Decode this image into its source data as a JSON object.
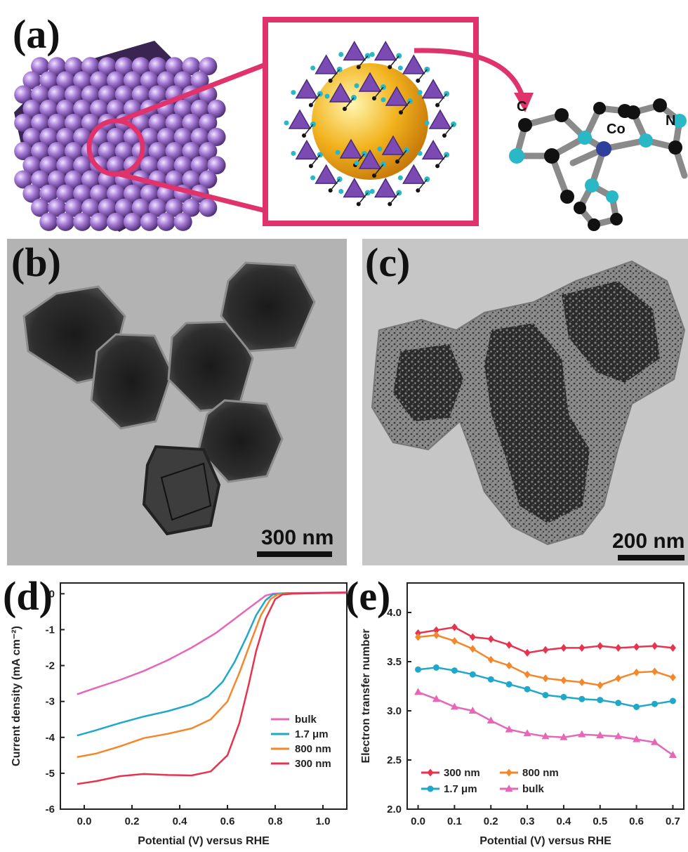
{
  "panels": {
    "a": {
      "label": "(a)",
      "atom_c": "C",
      "atom_co": "Co",
      "atom_n": "N"
    },
    "b": {
      "label": "(b)",
      "scale_bar": "300 nm"
    },
    "c": {
      "label": "(c)",
      "scale_bar": "200 nm"
    },
    "d": {
      "label": "(d)"
    },
    "e": {
      "label": "(e)"
    }
  },
  "colors": {
    "frame": "#e0336b",
    "atom_purple": "#9a6bc4",
    "sphere_yellow": "#f2b31e",
    "cyan_atom": "#2ab7c6",
    "co_atom": "#2f3f9c",
    "bulk": "#e667b8",
    "um17": "#1fa8c9",
    "nm800": "#f5872b",
    "nm300": "#e8334f"
  },
  "chart_data": [
    {
      "id": "d",
      "type": "line",
      "xlabel": "Potential (V) versus RHE",
      "ylabel": "Current density (mA cm⁻²)",
      "xlim": [
        -0.1,
        1.1
      ],
      "ylim": [
        -6,
        0.3
      ],
      "xticks": [
        "0.0",
        "0.2",
        "0.4",
        "0.6",
        "0.8",
        "1.0"
      ],
      "xtick_values": [
        0.0,
        0.2,
        0.4,
        0.6,
        0.8,
        1.0
      ],
      "yticks": [
        "0",
        "-1",
        "-2",
        "-3",
        "-4",
        "-5",
        "-6"
      ],
      "ytick_values": [
        0,
        -1,
        -2,
        -3,
        -4,
        -5,
        -6
      ],
      "legend_position": "lower-right",
      "series": [
        {
          "name": "bulk",
          "color": "#e667b8",
          "points": [
            [
              -0.03,
              -2.8
            ],
            [
              0.05,
              -2.62
            ],
            [
              0.15,
              -2.4
            ],
            [
              0.25,
              -2.15
            ],
            [
              0.35,
              -1.85
            ],
            [
              0.45,
              -1.5
            ],
            [
              0.55,
              -1.1
            ],
            [
              0.62,
              -0.75
            ],
            [
              0.68,
              -0.45
            ],
            [
              0.73,
              -0.2
            ],
            [
              0.76,
              -0.05
            ],
            [
              0.79,
              0.0
            ],
            [
              0.85,
              0.02
            ],
            [
              1.0,
              0.03
            ],
            [
              1.1,
              0.04
            ]
          ]
        },
        {
          "name": "1.7 μm",
          "color": "#1fa8c9",
          "points": [
            [
              -0.03,
              -3.95
            ],
            [
              0.05,
              -3.8
            ],
            [
              0.15,
              -3.6
            ],
            [
              0.25,
              -3.42
            ],
            [
              0.35,
              -3.27
            ],
            [
              0.45,
              -3.08
            ],
            [
              0.52,
              -2.85
            ],
            [
              0.58,
              -2.45
            ],
            [
              0.63,
              -1.9
            ],
            [
              0.68,
              -1.2
            ],
            [
              0.72,
              -0.6
            ],
            [
              0.76,
              -0.18
            ],
            [
              0.79,
              -0.02
            ],
            [
              0.83,
              0.0
            ],
            [
              1.0,
              0.02
            ],
            [
              1.1,
              0.03
            ]
          ]
        },
        {
          "name": "800 nm",
          "color": "#f5872b",
          "points": [
            [
              -0.03,
              -4.55
            ],
            [
              0.05,
              -4.45
            ],
            [
              0.15,
              -4.25
            ],
            [
              0.25,
              -4.02
            ],
            [
              0.35,
              -3.9
            ],
            [
              0.45,
              -3.75
            ],
            [
              0.53,
              -3.5
            ],
            [
              0.6,
              -3.0
            ],
            [
              0.65,
              -2.2
            ],
            [
              0.7,
              -1.3
            ],
            [
              0.74,
              -0.6
            ],
            [
              0.78,
              -0.15
            ],
            [
              0.81,
              -0.02
            ],
            [
              0.85,
              0.0
            ],
            [
              1.0,
              0.02
            ],
            [
              1.1,
              0.03
            ]
          ]
        },
        {
          "name": "300 nm",
          "color": "#e8334f",
          "points": [
            [
              -0.03,
              -5.3
            ],
            [
              0.05,
              -5.22
            ],
            [
              0.15,
              -5.08
            ],
            [
              0.25,
              -5.02
            ],
            [
              0.35,
              -5.05
            ],
            [
              0.45,
              -5.06
            ],
            [
              0.53,
              -4.95
            ],
            [
              0.6,
              -4.5
            ],
            [
              0.65,
              -3.6
            ],
            [
              0.69,
              -2.5
            ],
            [
              0.72,
              -1.6
            ],
            [
              0.76,
              -0.7
            ],
            [
              0.8,
              -0.15
            ],
            [
              0.83,
              -0.02
            ],
            [
              0.87,
              0.0
            ],
            [
              1.0,
              0.02
            ],
            [
              1.1,
              0.03
            ]
          ]
        }
      ]
    },
    {
      "id": "e",
      "type": "line",
      "xlabel": "Potential (V) versus RHE",
      "ylabel": "Electron transfer number",
      "xlim": [
        -0.03,
        0.73
      ],
      "ylim": [
        2.0,
        4.3
      ],
      "xticks": [
        "0.0",
        "0.1",
        "0.2",
        "0.3",
        "0.4",
        "0.5",
        "0.6",
        "0.7"
      ],
      "xtick_values": [
        0.0,
        0.1,
        0.2,
        0.3,
        0.4,
        0.5,
        0.6,
        0.7
      ],
      "yticks": [
        "2.0",
        "2.5",
        "3.0",
        "3.5",
        "4.0"
      ],
      "ytick_values": [
        2.0,
        2.5,
        3.0,
        3.5,
        4.0
      ],
      "legend_position": "lower-left",
      "x": [
        0.0,
        0.05,
        0.1,
        0.15,
        0.2,
        0.25,
        0.3,
        0.35,
        0.4,
        0.45,
        0.5,
        0.55,
        0.6,
        0.65,
        0.7
      ],
      "series": [
        {
          "name": "300 nm",
          "color": "#e8334f",
          "marker": "diamond",
          "values": [
            3.79,
            3.82,
            3.85,
            3.75,
            3.73,
            3.67,
            3.59,
            3.62,
            3.64,
            3.64,
            3.66,
            3.64,
            3.65,
            3.66,
            3.64
          ]
        },
        {
          "name": "800 nm",
          "color": "#f5872b",
          "marker": "diamond",
          "values": [
            3.75,
            3.77,
            3.71,
            3.63,
            3.52,
            3.46,
            3.37,
            3.33,
            3.31,
            3.29,
            3.26,
            3.33,
            3.39,
            3.4,
            3.34
          ]
        },
        {
          "name": "1.7 μm",
          "color": "#1fa8c9",
          "marker": "circle",
          "values": [
            3.42,
            3.44,
            3.41,
            3.37,
            3.32,
            3.27,
            3.22,
            3.16,
            3.14,
            3.12,
            3.11,
            3.08,
            3.04,
            3.07,
            3.1
          ]
        },
        {
          "name": "bulk",
          "color": "#e667b8",
          "marker": "triangle",
          "values": [
            3.19,
            3.12,
            3.04,
            3.0,
            2.9,
            2.81,
            2.77,
            2.74,
            2.73,
            2.76,
            2.75,
            2.74,
            2.71,
            2.68,
            2.55
          ]
        }
      ]
    }
  ]
}
